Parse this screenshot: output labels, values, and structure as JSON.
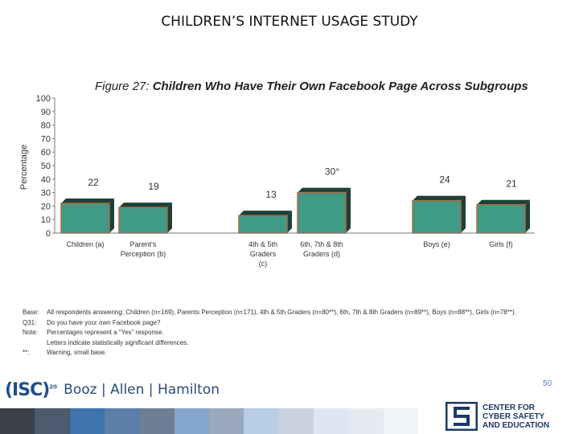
{
  "slide_title": "CHILDREN’S INTERNET USAGE STUDY",
  "figure_title": {
    "number": "Figure 27:",
    "text": "Children Who Have Their Own Facebook Page Across Subgroups"
  },
  "chart_data": {
    "type": "bar",
    "ylabel": "Percentage",
    "ylim": [
      0,
      100
    ],
    "yticks": [
      "0",
      "10",
      "20",
      "30",
      "40",
      "50",
      "60",
      "70",
      "80",
      "90",
      "100"
    ],
    "categories": [
      {
        "label": [
          "Children (a)"
        ],
        "value": 22,
        "value_label": "22"
      },
      {
        "label": [
          "Parent's",
          "Perception (b)"
        ],
        "value": 19,
        "value_label": "19"
      },
      {
        "label": [
          "4th & 5th",
          "Graders",
          "(c)"
        ],
        "value": 13,
        "value_label": "13"
      },
      {
        "label": [
          "6th, 7th & 8th",
          "Graders (d)"
        ],
        "value": 30,
        "value_label": "30°"
      },
      {
        "label": [
          "Boys (e)"
        ],
        "value": 24,
        "value_label": "24"
      },
      {
        "label": [
          "Girls (f)"
        ],
        "value": 21,
        "value_label": "21"
      }
    ],
    "colors": {
      "bar_fill": "#3f9a86",
      "bar_edge": "#b26a45",
      "bar_side": "#1d4038",
      "axis": "#777777"
    },
    "grid": false
  },
  "notes": [
    {
      "key": "Base:",
      "text": "All respondents answering: Children (n=169), Parents Perception (n=171), 4th & 5th Graders (n=80**), 6th, 7th & 8th Graders (n=89**), Boys (n=88**), Girls (n=78**)."
    },
    {
      "key": "Q31:",
      "text": "Do you have your own Facebook page?"
    },
    {
      "key": "Note:",
      "text": "Percentages represent a “Yes” response."
    },
    {
      "key": "",
      "text": "Letters indicate statistically significant differences."
    },
    {
      "key": "**:",
      "text": "Warning, small base."
    }
  ],
  "logos": {
    "isc": "(ISC)",
    "isc_sup": "2®",
    "booz": "Booz | Allen | Hamilton",
    "ccse_lines": [
      "CENTER FOR",
      "CYBER SAFETY",
      "AND EDUCATION"
    ]
  },
  "page_number": "50",
  "footer_colors": [
    "#3a3f4a",
    "#4e5a6e",
    "#3f73ad",
    "#5b7fa8",
    "#6d7f94",
    "#85a6cc",
    "#9aa9bb",
    "#b8cde6",
    "#c9d3df",
    "#dbe6f2",
    "#e6eaf0",
    "#f0f3f7"
  ]
}
